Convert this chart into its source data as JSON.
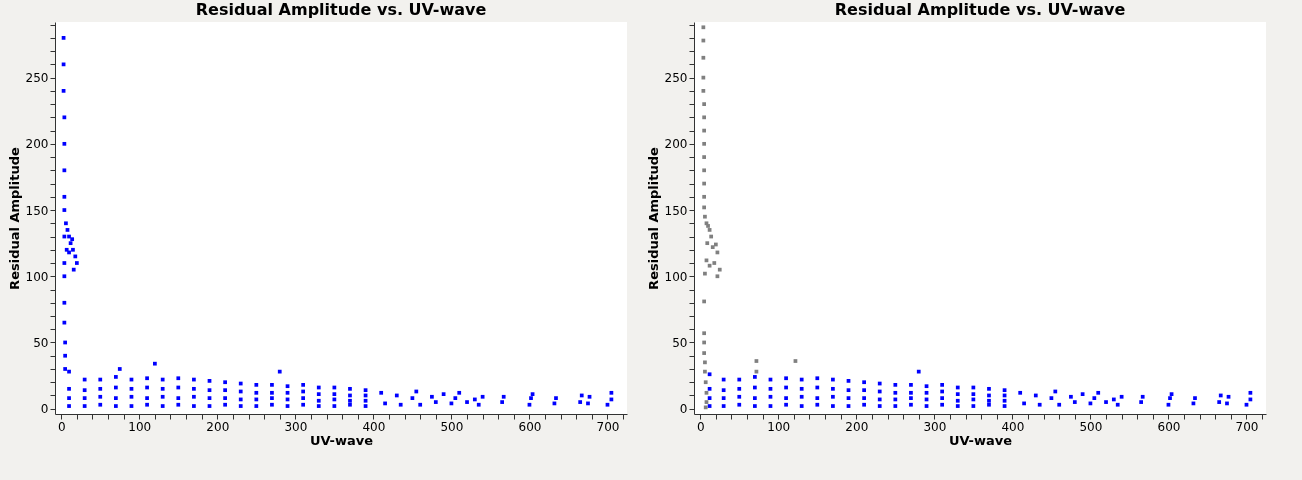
{
  "chart_data": [
    {
      "type": "scatter",
      "title": "Residual Amplitude vs. UV-wave",
      "xlabel": "UV-wave",
      "ylabel": "Residual Amplitude",
      "marker": "square",
      "grid": false,
      "xlim": [
        -8,
        725
      ],
      "ylim": [
        -4,
        292
      ],
      "xticks": [
        0,
        {
          "value": 20,
          "label": null
        },
        {
          "value": 40,
          "label": null
        },
        {
          "value": 60,
          "label": null
        },
        {
          "value": 80,
          "label": null
        },
        100,
        {
          "value": 120,
          "label": null
        },
        {
          "value": 140,
          "label": null
        },
        {
          "value": 160,
          "label": null
        },
        {
          "value": 180,
          "label": null
        },
        200,
        {
          "value": 220,
          "label": null
        },
        {
          "value": 240,
          "label": null
        },
        {
          "value": 260,
          "label": null
        },
        {
          "value": 280,
          "label": null
        },
        300,
        {
          "value": 320,
          "label": null
        },
        {
          "value": 340,
          "label": null
        },
        {
          "value": 360,
          "label": null
        },
        {
          "value": 380,
          "label": null
        },
        400,
        {
          "value": 420,
          "label": null
        },
        {
          "value": 440,
          "label": null
        },
        {
          "value": 460,
          "label": null
        },
        {
          "value": 480,
          "label": null
        },
        500,
        {
          "value": 520,
          "label": null
        },
        {
          "value": 540,
          "label": null
        },
        {
          "value": 560,
          "label": null
        },
        {
          "value": 580,
          "label": null
        },
        600,
        {
          "value": 620,
          "label": null
        },
        {
          "value": 640,
          "label": null
        },
        {
          "value": 660,
          "label": null
        },
        {
          "value": 680,
          "label": null
        },
        700,
        {
          "value": 720,
          "label": null
        }
      ],
      "yticks": [
        0,
        {
          "value": 10,
          "label": null
        },
        {
          "value": 20,
          "label": null
        },
        {
          "value": 30,
          "label": null
        },
        {
          "value": 40,
          "label": null
        },
        50,
        {
          "value": 60,
          "label": null
        },
        {
          "value": 70,
          "label": null
        },
        {
          "value": 80,
          "label": null
        },
        {
          "value": 90,
          "label": null
        },
        100,
        {
          "value": 110,
          "label": null
        },
        {
          "value": 120,
          "label": null
        },
        {
          "value": 130,
          "label": null
        },
        {
          "value": 140,
          "label": null
        },
        150,
        {
          "value": 160,
          "label": null
        },
        {
          "value": 170,
          "label": null
        },
        {
          "value": 180,
          "label": null
        },
        {
          "value": 190,
          "label": null
        },
        200,
        {
          "value": 210,
          "label": null
        },
        {
          "value": 220,
          "label": null
        },
        {
          "value": 230,
          "label": null
        },
        {
          "value": 240,
          "label": null
        },
        250,
        {
          "value": 260,
          "label": null
        },
        {
          "value": 270,
          "label": null
        },
        {
          "value": 280,
          "label": null
        },
        {
          "value": 290,
          "label": null
        }
      ],
      "series": [
        {
          "color": "#0000ff",
          "x": [
            3,
            3,
            3,
            4,
            4,
            4,
            4,
            4,
            4,
            4,
            4,
            4,
            4,
            5,
            5,
            5,
            6,
            8,
            10,
            12,
            7,
            15,
            18,
            10,
            20,
            16,
            14,
            10,
            10,
            10,
            10,
            30,
            30,
            30,
            30,
            50,
            50,
            50,
            50,
            70,
            70,
            70,
            70,
            90,
            90,
            90,
            90,
            110,
            110,
            110,
            110,
            130,
            130,
            130,
            130,
            150,
            150,
            150,
            150,
            170,
            170,
            170,
            170,
            190,
            190,
            190,
            190,
            210,
            210,
            210,
            210,
            230,
            230,
            230,
            230,
            250,
            250,
            250,
            250,
            270,
            270,
            270,
            270,
            290,
            290,
            290,
            290,
            310,
            310,
            310,
            310,
            330,
            330,
            330,
            330,
            350,
            350,
            350,
            350,
            370,
            370,
            370,
            370,
            390,
            390,
            390,
            390,
            410,
            415,
            430,
            435,
            450,
            455,
            460,
            475,
            480,
            490,
            500,
            505,
            510,
            520,
            530,
            535,
            540,
            565,
            567,
            600,
            602,
            604,
            632,
            634,
            665,
            667,
            675,
            677,
            700,
            705,
            705,
            120,
            75,
            280
          ],
          "values": [
            280,
            260,
            240,
            220,
            200,
            180,
            160,
            150,
            130,
            110,
            100,
            80,
            65,
            50,
            40,
            30,
            140,
            135,
            130,
            125,
            120,
            120,
            115,
            118,
            110,
            105,
            128,
            2,
            8,
            15,
            28,
            2,
            8,
            14,
            22,
            3,
            9,
            15,
            22,
            2,
            8,
            16,
            24,
            2,
            9,
            15,
            22,
            3,
            8,
            16,
            23,
            2,
            9,
            15,
            22,
            3,
            8,
            16,
            23,
            2,
            9,
            15,
            22,
            2,
            8,
            14,
            21,
            3,
            8,
            14,
            20,
            2,
            7,
            13,
            19,
            2,
            7,
            12,
            18,
            3,
            8,
            12,
            18,
            2,
            7,
            12,
            17,
            3,
            8,
            13,
            18,
            2,
            6,
            11,
            16,
            2,
            7,
            11,
            16,
            3,
            6,
            10,
            15,
            2,
            6,
            10,
            14,
            12,
            4,
            10,
            3,
            8,
            13,
            3,
            9,
            5,
            11,
            4,
            8,
            12,
            5,
            7,
            3,
            9,
            5,
            9,
            3,
            8,
            11,
            4,
            8,
            5,
            10,
            4,
            9,
            3,
            7,
            12,
            34,
            30,
            28
          ]
        }
      ]
    },
    {
      "type": "scatter",
      "title": "Residual Amplitude vs. UV-wave",
      "xlabel": "UV-wave",
      "ylabel": "Residual Amplitude",
      "marker": "square",
      "grid": false,
      "xlim": [
        -8,
        725
      ],
      "ylim": [
        -4,
        292
      ],
      "xticks": [
        0,
        {
          "value": 20,
          "label": null
        },
        {
          "value": 40,
          "label": null
        },
        {
          "value": 60,
          "label": null
        },
        {
          "value": 80,
          "label": null
        },
        100,
        {
          "value": 120,
          "label": null
        },
        {
          "value": 140,
          "label": null
        },
        {
          "value": 160,
          "label": null
        },
        {
          "value": 180,
          "label": null
        },
        200,
        {
          "value": 220,
          "label": null
        },
        {
          "value": 240,
          "label": null
        },
        {
          "value": 260,
          "label": null
        },
        {
          "value": 280,
          "label": null
        },
        300,
        {
          "value": 320,
          "label": null
        },
        {
          "value": 340,
          "label": null
        },
        {
          "value": 360,
          "label": null
        },
        {
          "value": 380,
          "label": null
        },
        400,
        {
          "value": 420,
          "label": null
        },
        {
          "value": 440,
          "label": null
        },
        {
          "value": 460,
          "label": null
        },
        {
          "value": 480,
          "label": null
        },
        500,
        {
          "value": 520,
          "label": null
        },
        {
          "value": 540,
          "label": null
        },
        {
          "value": 560,
          "label": null
        },
        {
          "value": 580,
          "label": null
        },
        600,
        {
          "value": 620,
          "label": null
        },
        {
          "value": 640,
          "label": null
        },
        {
          "value": 660,
          "label": null
        },
        {
          "value": 680,
          "label": null
        },
        700,
        {
          "value": 720,
          "label": null
        }
      ],
      "yticks": [
        0,
        {
          "value": 10,
          "label": null
        },
        {
          "value": 20,
          "label": null
        },
        {
          "value": 30,
          "label": null
        },
        {
          "value": 40,
          "label": null
        },
        50,
        {
          "value": 60,
          "label": null
        },
        {
          "value": 70,
          "label": null
        },
        {
          "value": 80,
          "label": null
        },
        {
          "value": 90,
          "label": null
        },
        100,
        {
          "value": 110,
          "label": null
        },
        {
          "value": 120,
          "label": null
        },
        {
          "value": 130,
          "label": null
        },
        {
          "value": 140,
          "label": null
        },
        150,
        {
          "value": 160,
          "label": null
        },
        {
          "value": 170,
          "label": null
        },
        {
          "value": 180,
          "label": null
        },
        {
          "value": 190,
          "label": null
        },
        200,
        {
          "value": 210,
          "label": null
        },
        {
          "value": 220,
          "label": null
        },
        {
          "value": 230,
          "label": null
        },
        {
          "value": 240,
          "label": null
        },
        250,
        {
          "value": 260,
          "label": null
        },
        {
          "value": 270,
          "label": null
        },
        {
          "value": 280,
          "label": null
        },
        {
          "value": 290,
          "label": null
        }
      ],
      "series": [
        {
          "color": "#0000ff",
          "x": [
            12,
            12,
            12,
            12,
            30,
            30,
            30,
            30,
            50,
            50,
            50,
            50,
            70,
            70,
            70,
            70,
            90,
            90,
            90,
            90,
            110,
            110,
            110,
            110,
            130,
            130,
            130,
            130,
            150,
            150,
            150,
            150,
            170,
            170,
            170,
            170,
            190,
            190,
            190,
            190,
            210,
            210,
            210,
            210,
            230,
            230,
            230,
            230,
            250,
            250,
            250,
            250,
            270,
            270,
            270,
            270,
            290,
            290,
            290,
            290,
            310,
            310,
            310,
            310,
            330,
            330,
            330,
            330,
            350,
            350,
            350,
            350,
            370,
            370,
            370,
            370,
            390,
            390,
            390,
            390,
            410,
            415,
            430,
            435,
            450,
            455,
            460,
            475,
            480,
            490,
            500,
            505,
            510,
            520,
            530,
            535,
            540,
            565,
            567,
            600,
            602,
            604,
            632,
            634,
            665,
            667,
            675,
            677,
            700,
            705,
            705,
            280
          ],
          "values": [
            2,
            8,
            15,
            26,
            2,
            8,
            14,
            22,
            3,
            9,
            15,
            22,
            2,
            8,
            16,
            24,
            2,
            9,
            15,
            22,
            3,
            8,
            16,
            23,
            2,
            9,
            15,
            22,
            3,
            8,
            16,
            23,
            2,
            9,
            15,
            22,
            2,
            8,
            14,
            21,
            3,
            8,
            14,
            20,
            2,
            7,
            13,
            19,
            2,
            7,
            12,
            18,
            3,
            8,
            12,
            18,
            2,
            7,
            12,
            17,
            3,
            8,
            13,
            18,
            2,
            6,
            11,
            16,
            2,
            7,
            11,
            16,
            3,
            6,
            10,
            15,
            2,
            6,
            10,
            14,
            12,
            4,
            10,
            3,
            8,
            13,
            3,
            9,
            5,
            11,
            4,
            8,
            12,
            5,
            7,
            3,
            9,
            5,
            9,
            3,
            8,
            11,
            4,
            8,
            5,
            10,
            4,
            9,
            3,
            7,
            12,
            28
          ]
        },
        {
          "color": "#808080",
          "x": [
            4,
            4,
            4,
            4,
            4,
            5,
            5,
            5,
            5,
            5,
            5,
            5,
            5,
            5,
            6,
            8,
            10,
            12,
            14,
            9,
            16,
            20,
            22,
            18,
            12,
            8,
            25,
            22,
            6,
            5,
            5,
            5,
            5,
            6,
            6,
            7,
            8,
            8,
            7,
            72,
            72,
            122
          ],
          "values": [
            288,
            278,
            265,
            250,
            240,
            230,
            220,
            210,
            200,
            190,
            180,
            170,
            160,
            152,
            145,
            140,
            138,
            135,
            130,
            125,
            122,
            124,
            118,
            110,
            108,
            112,
            105,
            100,
            102,
            81,
            57,
            50,
            42,
            35,
            28,
            20,
            12,
            5,
            1,
            36,
            28,
            36
          ]
        }
      ]
    }
  ]
}
